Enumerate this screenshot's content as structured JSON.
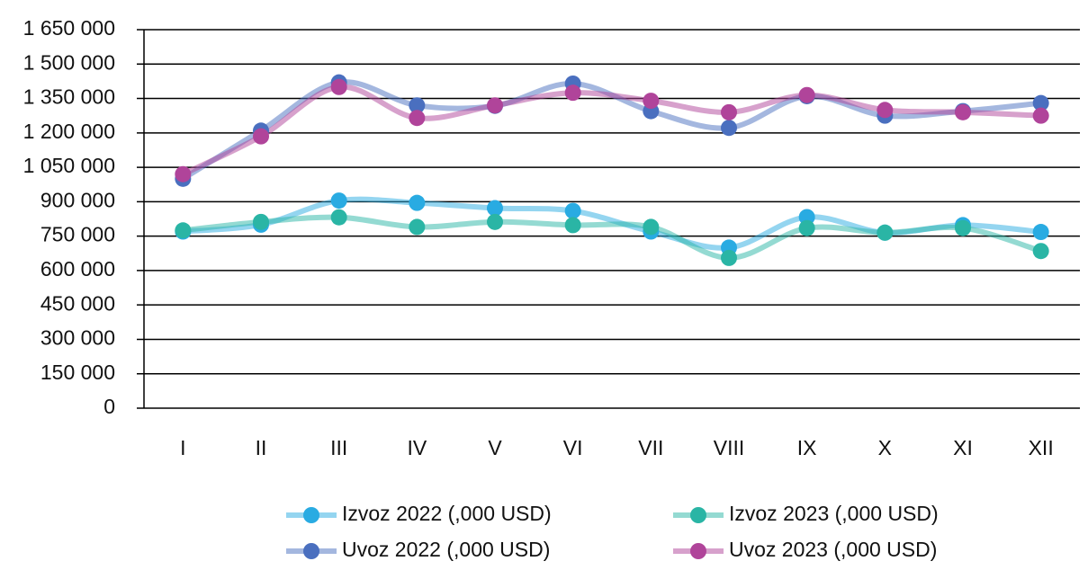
{
  "chart_data": {
    "type": "line",
    "categories": [
      "I",
      "II",
      "III",
      "IV",
      "V",
      "VI",
      "VII",
      "VIII",
      "IX",
      "X",
      "XI",
      "XII"
    ],
    "series": [
      {
        "name": "Izvoz 2022 (,000 USD)",
        "color": "#29abe2",
        "values": [
          770000,
          800000,
          905000,
          895000,
          872000,
          860000,
          770000,
          700000,
          833000,
          765000,
          798000,
          768000
        ]
      },
      {
        "name": "Izvoz 2023 (,000 USD)",
        "color": "#2ab5a5",
        "values": [
          775000,
          812000,
          832000,
          790000,
          812000,
          798000,
          790000,
          655000,
          785000,
          765000,
          785000,
          685000
        ]
      },
      {
        "name": "Uvoz 2022 (,000 USD)",
        "color": "#4a6fbf",
        "values": [
          1000000,
          1210000,
          1420000,
          1320000,
          1318000,
          1415000,
          1295000,
          1222000,
          1360000,
          1275000,
          1295000,
          1330000
        ]
      },
      {
        "name": "Uvoz 2023 (,000 USD)",
        "color": "#b0449a",
        "values": [
          1020000,
          1185000,
          1400000,
          1265000,
          1320000,
          1375000,
          1340000,
          1290000,
          1365000,
          1300000,
          1290000,
          1275000
        ]
      }
    ],
    "ylim": [
      0,
      1650000
    ],
    "yticks": [
      0,
      {
        "value": 150000,
        "label": "150 000"
      },
      {
        "value": 300000,
        "label": "300 000"
      },
      {
        "value": 450000,
        "label": "450 000"
      },
      {
        "value": 600000,
        "label": "600 000"
      },
      {
        "value": 750000,
        "label": "750 000"
      },
      {
        "value": 900000,
        "label": "900 000"
      },
      {
        "value": 1050000,
        "label": "1 050 000"
      },
      {
        "value": 1200000,
        "label": "1 200 000"
      },
      {
        "value": 1350000,
        "label": "1 350 000"
      },
      {
        "value": 1500000,
        "label": "1 500 000"
      },
      {
        "value": 1650000,
        "label": "1 650 000"
      }
    ],
    "grid": true,
    "legend": "bottom"
  }
}
